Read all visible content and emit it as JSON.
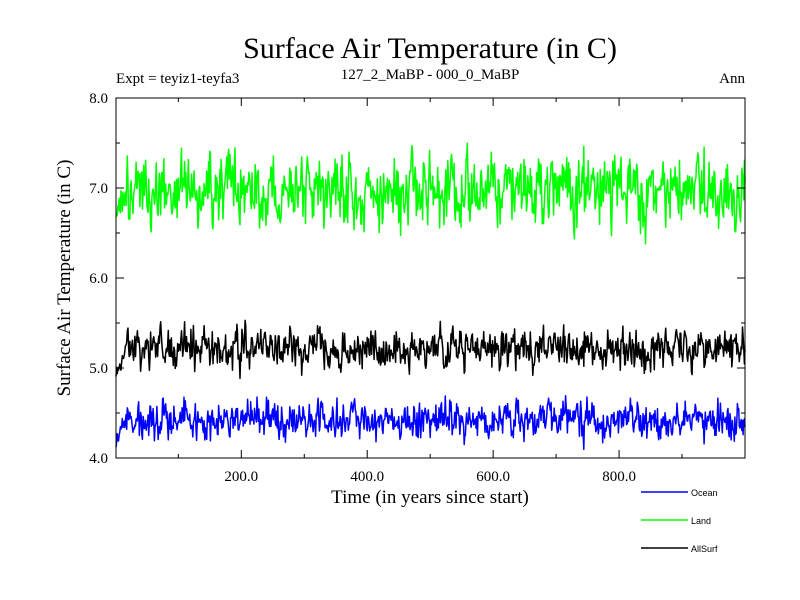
{
  "chart_data": {
    "type": "line",
    "title": "Surface Air Temperature (in C)",
    "subtitle_left": "Expt = teyiz1-teyfa3",
    "subtitle_center": "127_2_MaBP - 000_0_MaBP",
    "subtitle_right": "Ann",
    "xlabel": "Time (in years since start)",
    "ylabel": "Surface Air Temperature (in C)",
    "xlim": [
      1,
      1000
    ],
    "ylim": [
      4.0,
      8.0
    ],
    "x_ticks": [
      200,
      400,
      600,
      800
    ],
    "x_tick_labels": [
      "200.0",
      "400.0",
      "600.0",
      "800.0"
    ],
    "y_ticks": [
      4,
      5,
      6,
      7,
      8
    ],
    "y_tick_labels": [
      "4.0",
      "5.0",
      "6.0",
      "7.0",
      "8.0"
    ],
    "x_step": 1,
    "series": [
      {
        "name": "Ocean",
        "color": "#0000ff",
        "mean": 4.42,
        "start_value": 4.1,
        "variability": 0.12,
        "min": 4.08,
        "max": 4.75,
        "seed": 7
      },
      {
        "name": "Land",
        "color": "#00ff00",
        "mean": 6.97,
        "start_value": 6.55,
        "variability": 0.22,
        "min": 6.38,
        "max": 7.6,
        "seed": 3
      },
      {
        "name": "AllSurf",
        "color": "#000000",
        "mean": 5.22,
        "start_value": 4.95,
        "variability": 0.13,
        "min": 4.85,
        "max": 5.57,
        "seed": 11
      }
    ]
  }
}
